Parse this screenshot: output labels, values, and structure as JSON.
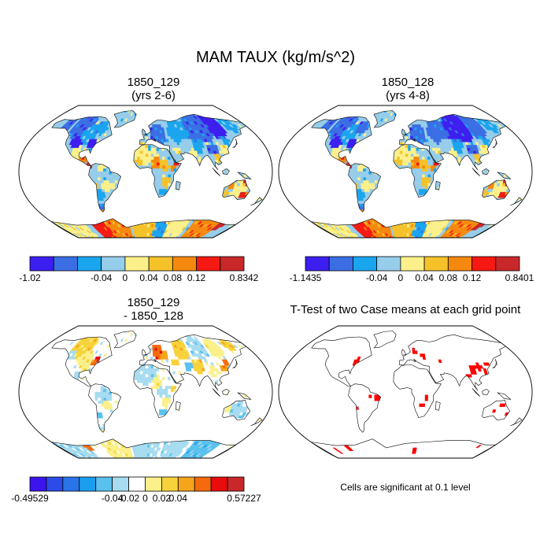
{
  "figure": {
    "title": "MAM TAUX (kg/m/s^2)"
  },
  "panels": {
    "p1": {
      "title_line1": "1850_129",
      "title_line2": "(yrs 2-6)"
    },
    "p2": {
      "title_line1": "1850_128",
      "title_line2": "(yrs 4-8)"
    },
    "p3": {
      "title_line1": "1850_129",
      "title_line2": "- 1850_128"
    },
    "p4": {
      "title": "T-Test of two Case means at each grid point",
      "footnote": "Cells are significant at 0.1 level",
      "significant_color": "#ff0000"
    }
  },
  "chart_data": [
    {
      "type": "heatmap",
      "name": "case1",
      "title": "1850_129 (yrs 2-6)",
      "projection": "Robinson",
      "colorbar": {
        "min_label": "-1.02",
        "max_label": "0.8342",
        "tick_labels": [
          "-0.04",
          "0",
          "0.04",
          "0.08",
          "0.12"
        ],
        "colors": [
          "#3d1ef0",
          "#3b6ee4",
          "#1aa5ef",
          "#96cdea",
          "#fbf08a",
          "#f5c22a",
          "#f5890f",
          "#f51912",
          "#c8282a"
        ]
      }
    },
    {
      "type": "heatmap",
      "name": "case2",
      "title": "1850_128 (yrs 4-8)",
      "projection": "Robinson",
      "colorbar": {
        "min_label": "-1.1435",
        "max_label": "0.8401",
        "tick_labels": [
          "-0.04",
          "0",
          "0.04",
          "0.08",
          "0.12"
        ],
        "colors": [
          "#3d1ef0",
          "#3b6ee4",
          "#1aa5ef",
          "#96cdea",
          "#fbf08a",
          "#f5c22a",
          "#f5890f",
          "#f51912",
          "#c8282a"
        ]
      }
    },
    {
      "type": "heatmap",
      "name": "difference",
      "title": "1850_129 - 1850_128",
      "projection": "Robinson",
      "colorbar": {
        "min_label": "-0.49529",
        "max_label": "0.57227",
        "tick_labels": [
          "-0.04",
          "-0.02",
          "0",
          "0.02",
          "0.04"
        ],
        "colors": [
          "#3b14ee",
          "#2c4be8",
          "#2a74ea",
          "#1a9ff0",
          "#59c1ee",
          "#a7dcf0",
          "#ffffff",
          "#fbf08a",
          "#f7d23a",
          "#f6a51a",
          "#f56a0c",
          "#e80c0c",
          "#c8282a"
        ]
      }
    },
    {
      "type": "heatmap",
      "name": "t-test",
      "title": "T-Test of two Case means at each grid point",
      "projection": "Robinson",
      "legend": "Cells are significant at 0.1 level"
    }
  ]
}
